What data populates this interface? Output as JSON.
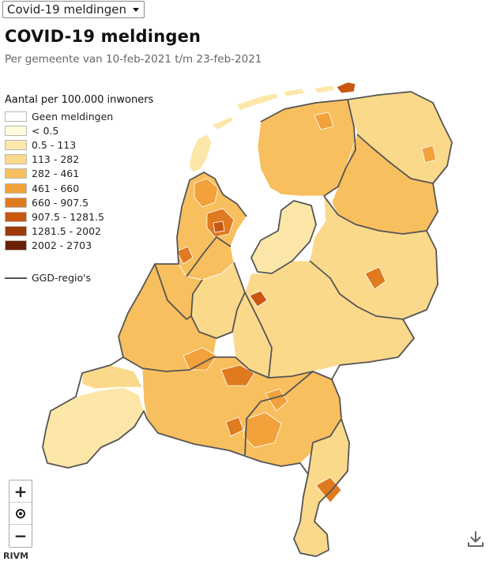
{
  "dropdown": {
    "selected": "Covid-19 meldingen"
  },
  "header": {
    "title": "COVID-19 meldingen",
    "subtitle": "Per gemeente van 10-feb-2021 t/m 23-feb-2021"
  },
  "legend": {
    "title": "Aantal per 100.000 inwoners",
    "items": [
      {
        "label": "Geen meldingen",
        "color": "#ffffff"
      },
      {
        "label": "< 0.5",
        "color": "#fffbdd"
      },
      {
        "label": "0.5 - 113",
        "color": "#fde7a8"
      },
      {
        "label": "113 - 282",
        "color": "#fbd98b"
      },
      {
        "label": "282 - 461",
        "color": "#f8bf5e"
      },
      {
        "label": "461 - 660",
        "color": "#f2a13b"
      },
      {
        "label": "660 - 907.5",
        "color": "#e07a1f"
      },
      {
        "label": "907.5 - 1281.5",
        "color": "#c95710"
      },
      {
        "label": "1281.5 - 2002",
        "color": "#9e3a08"
      },
      {
        "label": "2002 - 2703",
        "color": "#6b2002"
      }
    ],
    "ggd_label": "GGD-regio's"
  },
  "map": {
    "base_color": "#fbd98b",
    "mid_color": "#f8bf5e",
    "hot_color": "#f2a13b",
    "dark_color": "#c95710",
    "boundary_color": "#555555"
  },
  "controls": {
    "zoom_in": "+",
    "zoom_out": "−",
    "icons": [
      "zoom-in-icon",
      "locate-icon",
      "zoom-out-icon",
      "download-icon"
    ]
  },
  "footer": {
    "source": "RIVM"
  }
}
